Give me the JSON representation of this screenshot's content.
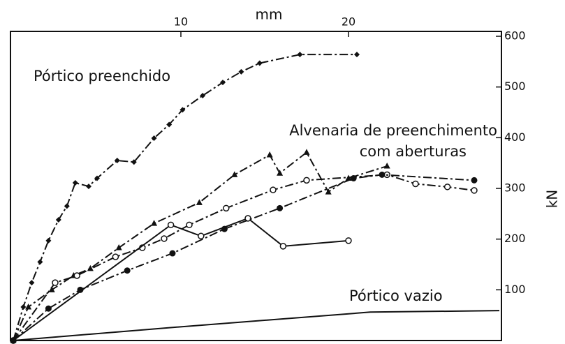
{
  "chart_data": {
    "type": "line",
    "x_label": "mm",
    "y_label": "kN",
    "xlim": [
      0,
      29
    ],
    "ylim": [
      0,
      600
    ],
    "xticks": [
      10,
      20
    ],
    "yticks": [
      100,
      200,
      300,
      400,
      500,
      600
    ],
    "annotations": [
      "Pórtico preenchido",
      "Alvenaria de preenchimento",
      "com aberturas",
      "Pórtico vazio"
    ],
    "series": [
      {
        "marker": "diamond",
        "dash": "12 4 3 4",
        "color": "#111",
        "x": [
          0,
          0.6,
          1.1,
          1.6,
          2.1,
          2.7,
          3.2,
          3.7,
          4.5,
          5.0,
          6.2,
          7.2,
          8.4,
          9.3,
          10.1,
          11.3,
          12.5,
          13.6,
          14.7,
          17.1,
          20.5
        ],
        "values": [
          0,
          66,
          114,
          155,
          197,
          238,
          265,
          311,
          304,
          320,
          355,
          352,
          399,
          426,
          455,
          483,
          509,
          530,
          547,
          564,
          564
        ]
      },
      {
        "marker": "none",
        "dash": "none",
        "color": "#111",
        "x": [
          0,
          9.2,
          21.3,
          29
        ],
        "values": [
          0,
          25,
          56,
          59
        ]
      },
      {
        "marker": "triangle",
        "dash": "12 4 3 4",
        "color": "#111",
        "x": [
          0,
          0.9,
          2.3,
          3.6,
          4.6,
          6.3,
          8.4,
          11.1,
          13.2,
          15.3,
          15.9,
          17.5,
          18.8,
          20.0,
          22.3
        ],
        "values": [
          0,
          66,
          100,
          128,
          142,
          183,
          231,
          272,
          327,
          366,
          330,
          371,
          293,
          320,
          344
        ]
      },
      {
        "marker": "open",
        "dash": "12 4 3 4",
        "color": "#111",
        "x": [
          0,
          2.5,
          3.8,
          6.1,
          7.7,
          9.0,
          10.5,
          12.7,
          15.5,
          17.5,
          22.3,
          24.0,
          25.9,
          27.5
        ],
        "values": [
          0,
          114,
          128,
          165,
          183,
          201,
          228,
          261,
          297,
          316,
          327,
          309,
          303,
          296
        ]
      },
      {
        "marker": "open",
        "dash": "none",
        "color": "#111",
        "x": [
          0,
          9.4,
          11.2,
          14.0,
          16.1,
          20.0
        ],
        "values": [
          0,
          228,
          206,
          241,
          186,
          197
        ]
      },
      {
        "marker": "filled",
        "dash": "12 4 3 4",
        "color": "#111",
        "x": [
          0,
          2.1,
          4.0,
          6.8,
          9.5,
          12.6,
          15.9,
          20.3,
          22.0,
          27.5
        ],
        "values": [
          0,
          63,
          100,
          138,
          172,
          220,
          261,
          320,
          327,
          316
        ]
      }
    ]
  }
}
